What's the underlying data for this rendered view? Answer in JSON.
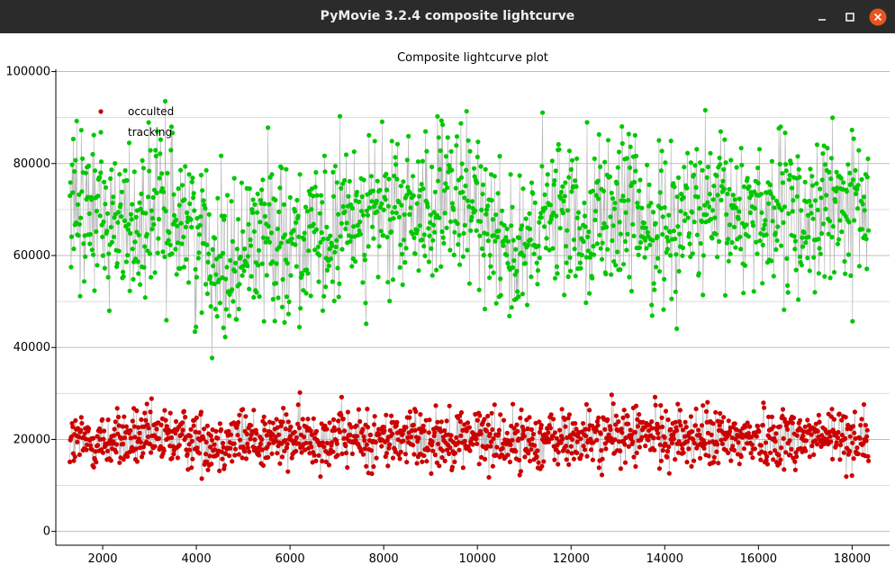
{
  "window": {
    "title": "PyMovie 3.2.4 composite lightcurve",
    "controls": [
      "minimize-icon",
      "maximize-icon",
      "close-icon"
    ],
    "close_color": "#e95420"
  },
  "chart_data": {
    "type": "scatter",
    "title": "Composite lightcurve plot",
    "xlabel": "",
    "ylabel": "",
    "xlim": [
      1000,
      18800
    ],
    "ylim": [
      -3000,
      100500
    ],
    "xticks": [
      2000,
      4000,
      6000,
      8000,
      10000,
      12000,
      14000,
      16000,
      18000
    ],
    "yticks": [
      0,
      20000,
      40000,
      60000,
      80000,
      100000
    ],
    "xtick_labels": [
      "2000",
      "4000",
      "6000",
      "8000",
      "10000",
      "12000",
      "14000",
      "16000",
      "18000"
    ],
    "ytick_labels": [
      "0",
      "20000",
      "40000",
      "60000",
      "80000",
      "100000"
    ],
    "grid": true,
    "legend_position": "top-left",
    "x_range": [
      1300,
      18350
    ],
    "series": [
      {
        "name": "occulted",
        "color": "#cc0000",
        "profile": [
          [
            1300,
            19500
          ],
          [
            2000,
            19500
          ],
          [
            2500,
            20000
          ],
          [
            3000,
            20000
          ],
          [
            3500,
            20500
          ],
          [
            4000,
            20000
          ],
          [
            4500,
            19500
          ],
          [
            5000,
            20500
          ],
          [
            5500,
            20000
          ],
          [
            6000,
            20000
          ],
          [
            6500,
            20500
          ],
          [
            7000,
            20500
          ],
          [
            7500,
            20000
          ],
          [
            8000,
            20000
          ],
          [
            8500,
            20500
          ],
          [
            9000,
            20500
          ],
          [
            9500,
            20500
          ],
          [
            10000,
            20500
          ],
          [
            10500,
            20000
          ],
          [
            11000,
            19500
          ],
          [
            11500,
            20000
          ],
          [
            12000,
            20000
          ],
          [
            12500,
            20500
          ],
          [
            13000,
            21000
          ],
          [
            13500,
            21000
          ],
          [
            14000,
            21000
          ],
          [
            14500,
            20500
          ],
          [
            15000,
            20000
          ],
          [
            15500,
            20000
          ],
          [
            16000,
            20500
          ],
          [
            16500,
            20500
          ],
          [
            17000,
            20500
          ],
          [
            17500,
            20500
          ],
          [
            18000,
            20500
          ],
          [
            18350,
            20500
          ]
        ],
        "min": 9500,
        "max": 32500
      },
      {
        "name": "tracking",
        "color": "#00c800",
        "profile": [
          [
            1300,
            68000
          ],
          [
            1800,
            70000
          ],
          [
            2200,
            68000
          ],
          [
            2600,
            66000
          ],
          [
            3000,
            69000
          ],
          [
            3400,
            70000
          ],
          [
            3800,
            68000
          ],
          [
            4200,
            62000
          ],
          [
            4600,
            60000
          ],
          [
            4900,
            58000
          ],
          [
            5200,
            64000
          ],
          [
            5600,
            66000
          ],
          [
            6000,
            64000
          ],
          [
            6400,
            62000
          ],
          [
            6800,
            62000
          ],
          [
            7200,
            68000
          ],
          [
            7600,
            70000
          ],
          [
            8000,
            69000
          ],
          [
            8400,
            68000
          ],
          [
            8800,
            70000
          ],
          [
            9200,
            71000
          ],
          [
            9600,
            70000
          ],
          [
            10000,
            70000
          ],
          [
            10400,
            68000
          ],
          [
            10800,
            60000
          ],
          [
            11000,
            58000
          ],
          [
            11400,
            68000
          ],
          [
            11800,
            69000
          ],
          [
            12200,
            69000
          ],
          [
            12600,
            69000
          ],
          [
            13000,
            70000
          ],
          [
            13400,
            68000
          ],
          [
            13800,
            66000
          ],
          [
            14200,
            68000
          ],
          [
            14600,
            70000
          ],
          [
            15000,
            68000
          ],
          [
            15400,
            69000
          ],
          [
            15800,
            70000
          ],
          [
            16200,
            70000
          ],
          [
            16600,
            67000
          ],
          [
            17000,
            68000
          ],
          [
            17400,
            70000
          ],
          [
            17800,
            70000
          ],
          [
            18350,
            71000
          ]
        ],
        "min": 37500,
        "max": 97500
      }
    ]
  }
}
